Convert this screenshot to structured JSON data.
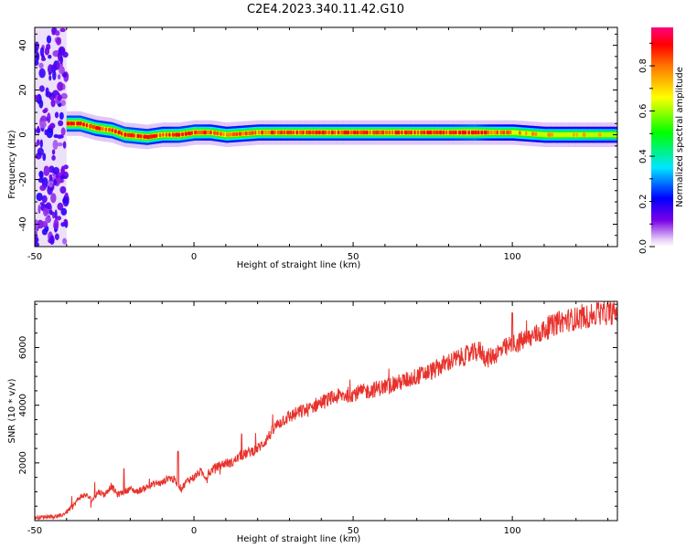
{
  "figure": {
    "title": "C2E4.2023.340.11.42.G10"
  },
  "chart_data": [
    {
      "type": "heatmap",
      "xlabel": "Height of straight line (km)",
      "ylabel": "Frequency (Hz)",
      "xlim": [
        -50,
        133
      ],
      "ylim": [
        -50,
        48
      ],
      "xticks": [
        -50,
        0,
        50,
        100
      ],
      "yticks": [
        -40,
        -20,
        0,
        20,
        40
      ],
      "grid": false,
      "colorbar": {
        "label": "Normalized spectral amplitude",
        "range": [
          0,
          0.97
        ],
        "ticks": [
          0.0,
          0.2,
          0.4,
          0.6,
          0.8
        ],
        "colormap": "rainbow (white-violet-blue-cyan-green-yellow-red-magenta)"
      },
      "noise_region_x": [
        -50,
        -40
      ],
      "ridge": {
        "description_points_x": [
          -40,
          -36,
          -31,
          -26,
          -22,
          -15,
          -10,
          -5,
          0,
          5,
          10,
          20,
          40,
          60,
          80,
          88,
          92,
          100,
          110,
          120,
          133
        ],
        "frequency_hz": [
          5,
          5,
          3,
          2,
          0,
          -1,
          0,
          0,
          1,
          1,
          0,
          1,
          1,
          1,
          1,
          1,
          1,
          1,
          0,
          0,
          0
        ],
        "peak_amplitude": [
          0.9,
          0.9,
          0.85,
          0.85,
          0.9,
          0.85,
          0.8,
          0.85,
          0.85,
          0.8,
          0.8,
          0.8,
          0.85,
          0.85,
          0.85,
          0.95,
          0.8,
          0.75,
          0.7,
          0.7,
          0.65
        ]
      }
    },
    {
      "type": "line",
      "xlabel": "Height of straight line (km)",
      "ylabel": "SNR (10 * v/v)",
      "xlim": [
        -50,
        133
      ],
      "ylim": [
        0,
        7600
      ],
      "xticks": [
        -50,
        0,
        50,
        100
      ],
      "yticks": [
        2000,
        4000,
        6000
      ],
      "grid": false,
      "series": [
        {
          "color": "#e8322c",
          "x": [
            -50,
            -45,
            -42,
            -40,
            -38,
            -36,
            -34,
            -32,
            -30,
            -28,
            -26,
            -24,
            -22,
            -20,
            -18,
            -16,
            -14,
            -12,
            -10,
            -8,
            -6,
            -4,
            -2,
            0,
            2,
            4,
            6,
            8,
            10,
            12,
            14,
            16,
            18,
            20,
            22,
            24,
            26,
            28,
            30,
            32,
            34,
            36,
            38,
            40,
            45,
            50,
            55,
            60,
            65,
            70,
            75,
            80,
            85,
            90,
            92,
            95,
            100,
            105,
            110,
            115,
            120,
            125,
            130,
            133
          ],
          "y": [
            100,
            150,
            150,
            300,
            500,
            800,
            900,
            700,
            1000,
            900,
            1200,
            900,
            1000,
            1100,
            1000,
            1100,
            1200,
            1300,
            1300,
            1500,
            1400,
            1100,
            1400,
            1500,
            1700,
            1500,
            1800,
            1900,
            2000,
            2000,
            2200,
            2300,
            2400,
            2500,
            2700,
            3000,
            3300,
            3500,
            3600,
            3700,
            3800,
            3850,
            4000,
            4100,
            4300,
            4400,
            4500,
            4650,
            4800,
            5000,
            5200,
            5500,
            5700,
            5900,
            5600,
            5800,
            6100,
            6300,
            6600,
            6900,
            7000,
            7100,
            7200,
            7200
          ],
          "notable_spikes": [
            {
              "x": -22,
              "y": 1800
            },
            {
              "x": -5,
              "y": 2400
            },
            {
              "x": 15,
              "y": 3000
            },
            {
              "x": 100,
              "y": 7200
            },
            {
              "x": 127,
              "y": 7550
            }
          ]
        }
      ]
    }
  ]
}
